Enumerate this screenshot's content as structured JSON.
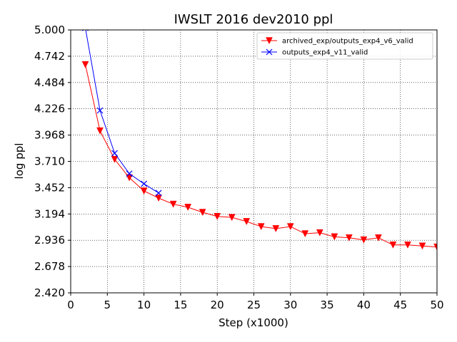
{
  "chart_data": {
    "type": "line",
    "title": "IWSLT 2016 dev2010 ppl",
    "xlabel": "Step (x1000)",
    "ylabel": "log ppl",
    "xlim": [
      0,
      50
    ],
    "ylim": [
      2.42,
      5.0
    ],
    "xticks": [
      0,
      5,
      10,
      15,
      20,
      25,
      30,
      35,
      40,
      45,
      50
    ],
    "yticks": [
      "2.420",
      "2.678",
      "2.936",
      "3.194",
      "3.452",
      "3.710",
      "3.968",
      "4.226",
      "4.484",
      "4.742",
      "5.000"
    ],
    "grid": "on (dotted)",
    "legend_position": "top-right",
    "series": [
      {
        "name": "archived_exp/outputs_exp4_v6_valid",
        "color": "#ff0000",
        "marker": "triangle-down",
        "x": [
          2,
          4,
          6,
          8,
          10,
          12,
          14,
          16,
          18,
          20,
          22,
          24,
          26,
          28,
          30,
          32,
          34,
          36,
          38,
          40,
          42,
          44,
          46,
          48,
          50
        ],
        "y": [
          4.66,
          4.01,
          3.73,
          3.55,
          3.42,
          3.35,
          3.29,
          3.26,
          3.21,
          3.17,
          3.16,
          3.12,
          3.07,
          3.05,
          3.07,
          3.0,
          3.01,
          2.97,
          2.96,
          2.94,
          2.96,
          2.89,
          2.89,
          2.88,
          2.87
        ]
      },
      {
        "name": "outputs_exp4_v11_valid",
        "color": "#0000ff",
        "marker": "x",
        "x": [
          2,
          4,
          6,
          8,
          10,
          12
        ],
        "y": [
          5.02,
          4.21,
          3.79,
          3.59,
          3.49,
          3.4
        ]
      }
    ]
  }
}
